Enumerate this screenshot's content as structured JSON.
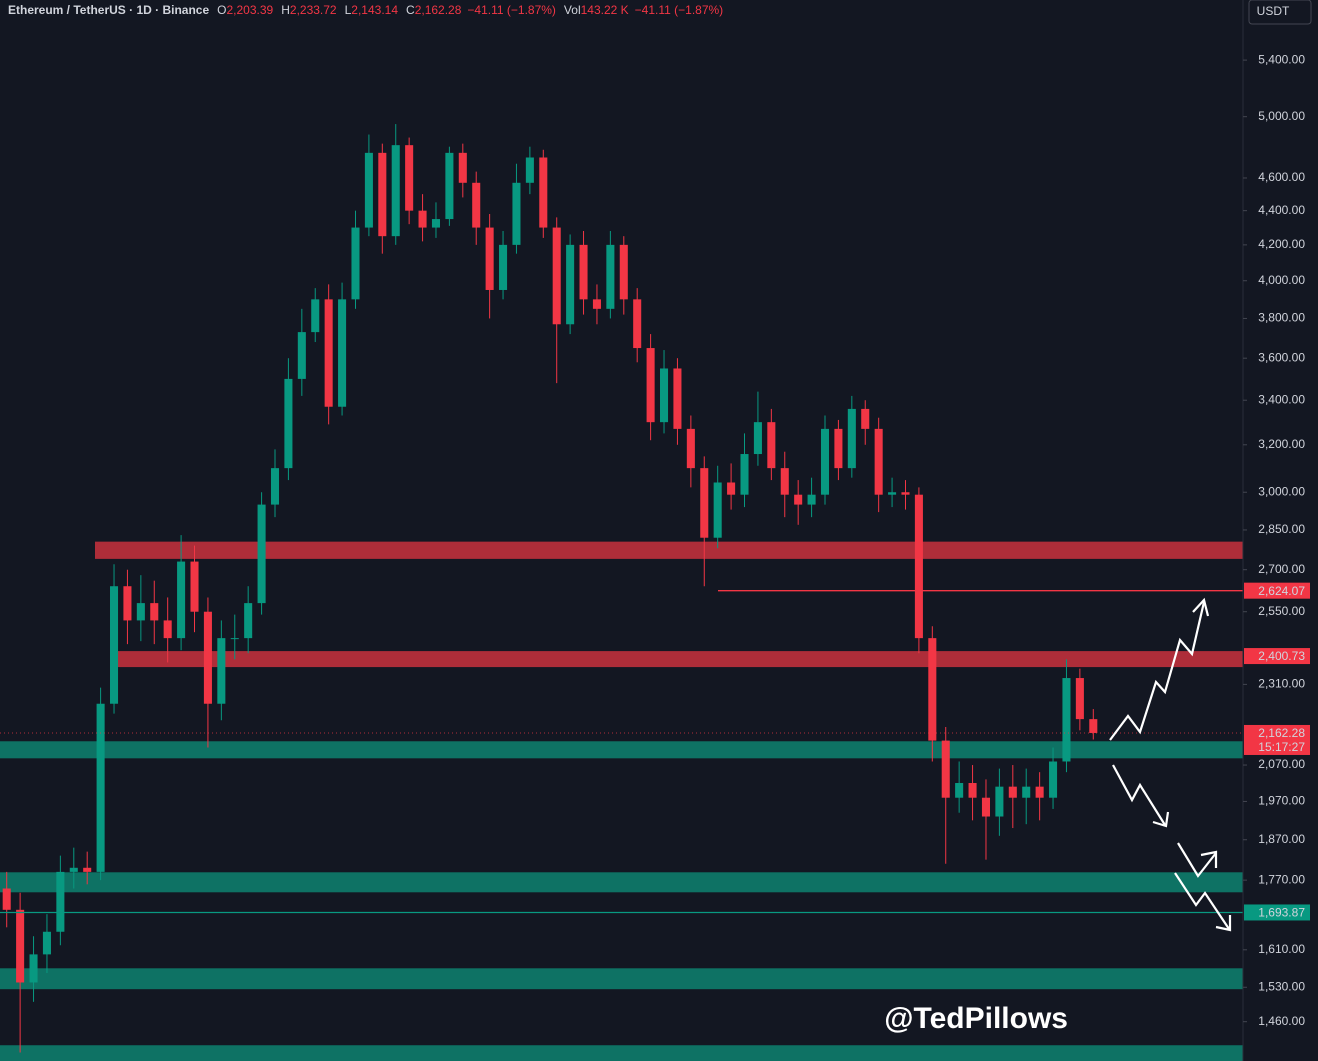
{
  "chart_data": {
    "type": "candlestick",
    "symbol": "Ethereum / TetherUS · 1D · Binance",
    "legend": [
      {
        "key": "O",
        "value": "2,203.39"
      },
      {
        "key": "H",
        "value": "2,233.72"
      },
      {
        "key": "L",
        "value": "2,143.14"
      },
      {
        "key": "C",
        "value": "2,162.28"
      }
    ],
    "change": "−41.11 (−1.87%)",
    "volume_key": "Vol",
    "volume": "143.22 K",
    "volume_change": "−41.11 (−1.87%)",
    "currency": "USDT",
    "watermark": "@TedPillows",
    "log_scale": true,
    "ylim": [
      1384,
      5860
    ],
    "yticks": [
      {
        "value": 5400,
        "label": "5,400.00"
      },
      {
        "value": 5000,
        "label": "5,000.00"
      },
      {
        "value": 4600,
        "label": "4,600.00"
      },
      {
        "value": 4400,
        "label": "4,400.00"
      },
      {
        "value": 4200,
        "label": "4,200.00"
      },
      {
        "value": 4000,
        "label": "4,000.00"
      },
      {
        "value": 3800,
        "label": "3,800.00"
      },
      {
        "value": 3600,
        "label": "3,600.00"
      },
      {
        "value": 3400,
        "label": "3,400.00"
      },
      {
        "value": 3200,
        "label": "3,200.00"
      },
      {
        "value": 3000,
        "label": "3,000.00"
      },
      {
        "value": 2850,
        "label": "2,850.00"
      },
      {
        "value": 2700,
        "label": "2,700.00"
      },
      {
        "value": 2550,
        "label": "2,550.00"
      },
      {
        "value": 2310,
        "label": "2,310.00"
      },
      {
        "value": 2070,
        "label": "2,070.00"
      },
      {
        "value": 1970,
        "label": "1,970.00"
      },
      {
        "value": 1870,
        "label": "1,870.00"
      },
      {
        "value": 1770,
        "label": "1,770.00"
      },
      {
        "value": 1610,
        "label": "1,610.00"
      },
      {
        "value": 1530,
        "label": "1,530.00"
      },
      {
        "value": 1460,
        "label": "1,460.00"
      }
    ],
    "up_color": "#089981",
    "down_color": "#f23645",
    "candles": {
      "open": [
        1750,
        1700,
        1540,
        1600,
        1650,
        1790,
        1800,
        1790,
        2250,
        2640,
        2520,
        2580,
        2520,
        2460,
        2730,
        2550,
        2250,
        2460,
        2460,
        2580,
        2950,
        3100,
        3500,
        3730,
        3900,
        3370,
        3900,
        4300,
        4760,
        4250,
        4810,
        4400,
        4300,
        4350,
        4760,
        4570,
        4300,
        3950,
        4200,
        4570,
        4730,
        4300,
        3770,
        4200,
        3900,
        3850,
        4200,
        3900,
        3650,
        3300,
        3550,
        3270,
        3100,
        2820,
        3040,
        2990,
        3160,
        3300,
        3100,
        2990,
        2950,
        2990,
        3270,
        3100,
        3360,
        3270,
        2990,
        3000,
        2990,
        2460,
        2140,
        1980,
        2020,
        1980,
        1930,
        2010,
        1980,
        2010,
        1980,
        2080,
        2330,
        2203.39
      ],
      "high": [
        1790,
        1740,
        1640,
        1690,
        1830,
        1850,
        1840,
        2300,
        2720,
        2700,
        2680,
        2660,
        2600,
        2830,
        2790,
        2600,
        2520,
        2540,
        2640,
        3000,
        3180,
        3600,
        3850,
        3960,
        3980,
        3990,
        4400,
        4880,
        4820,
        4950,
        4860,
        4500,
        4450,
        4800,
        4820,
        4640,
        4380,
        4280,
        4690,
        4800,
        4780,
        4360,
        4260,
        4280,
        3980,
        4280,
        4250,
        3960,
        3720,
        3640,
        3600,
        3330,
        3150,
        3110,
        3120,
        3250,
        3440,
        3360,
        3170,
        3050,
        3060,
        3330,
        3310,
        3420,
        3400,
        3320,
        3060,
        3050,
        3020,
        2500,
        2180,
        2080,
        2070,
        2030,
        2060,
        2070,
        2060,
        2050,
        2120,
        2390,
        2360,
        2233.72
      ],
      "low": [
        1660,
        1400,
        1500,
        1560,
        1620,
        1750,
        1760,
        1770,
        2220,
        2440,
        2450,
        2440,
        2380,
        2420,
        2480,
        2120,
        2200,
        2390,
        2410,
        2540,
        2900,
        3050,
        3420,
        3680,
        3290,
        3330,
        3850,
        4250,
        4150,
        4200,
        4320,
        4220,
        4240,
        4310,
        4480,
        4200,
        3800,
        3900,
        4150,
        4500,
        4240,
        3480,
        3720,
        3820,
        3770,
        3800,
        3820,
        3580,
        3220,
        3250,
        3200,
        3020,
        2640,
        2780,
        2930,
        2940,
        3110,
        3050,
        2900,
        2870,
        2900,
        2950,
        3050,
        3060,
        3200,
        2920,
        2940,
        2930,
        2410,
        2080,
        1810,
        1940,
        1920,
        1820,
        1880,
        1900,
        1910,
        1920,
        1950,
        2050,
        2170,
        2143.14
      ],
      "close": [
        1700,
        1540,
        1600,
        1650,
        1790,
        1800,
        1790,
        2250,
        2640,
        2520,
        2580,
        2520,
        2460,
        2730,
        2550,
        2250,
        2460,
        2460,
        2580,
        2950,
        3100,
        3500,
        3730,
        3900,
        3370,
        3900,
        4300,
        4760,
        4250,
        4810,
        4400,
        4300,
        4350,
        4760,
        4570,
        4300,
        3950,
        4200,
        4570,
        4730,
        4300,
        3770,
        4200,
        3900,
        3850,
        4200,
        3900,
        3650,
        3300,
        3550,
        3270,
        3100,
        2820,
        3040,
        2990,
        3160,
        3300,
        3100,
        2990,
        2950,
        2990,
        3270,
        3100,
        3360,
        3270,
        2990,
        3000,
        2990,
        2460,
        2140,
        1980,
        2020,
        1980,
        1930,
        2010,
        1980,
        2010,
        1980,
        2080,
        2330,
        2203.39,
        2162.28
      ]
    },
    "zones": [
      {
        "low": 2740,
        "high": 2805,
        "color": "#c0303c"
      },
      {
        "low": 2365,
        "high": 2417,
        "color": "#c0303c"
      },
      {
        "low": 2089,
        "high": 2138,
        "color": "#0e7c6b"
      },
      {
        "low": 1741,
        "high": 1789,
        "color": "#0e7c6b"
      },
      {
        "low": 1526,
        "high": 1570,
        "color": "#0e7c6b"
      },
      {
        "low": 1384,
        "high": 1414,
        "color": "#0e7c6b"
      }
    ],
    "price_lines": [
      {
        "value": 2624.07,
        "label": "2,624.07",
        "color": "#f23645"
      },
      {
        "value": 2400.73,
        "label": "2,400.73",
        "color": "#f23645"
      },
      {
        "value": 1693.87,
        "label": "1,693.87",
        "color": "#089981"
      }
    ],
    "last_price": {
      "value": 2162.28,
      "label": "2,162.28",
      "countdown": "15:17:27",
      "color": "#f23645"
    }
  }
}
